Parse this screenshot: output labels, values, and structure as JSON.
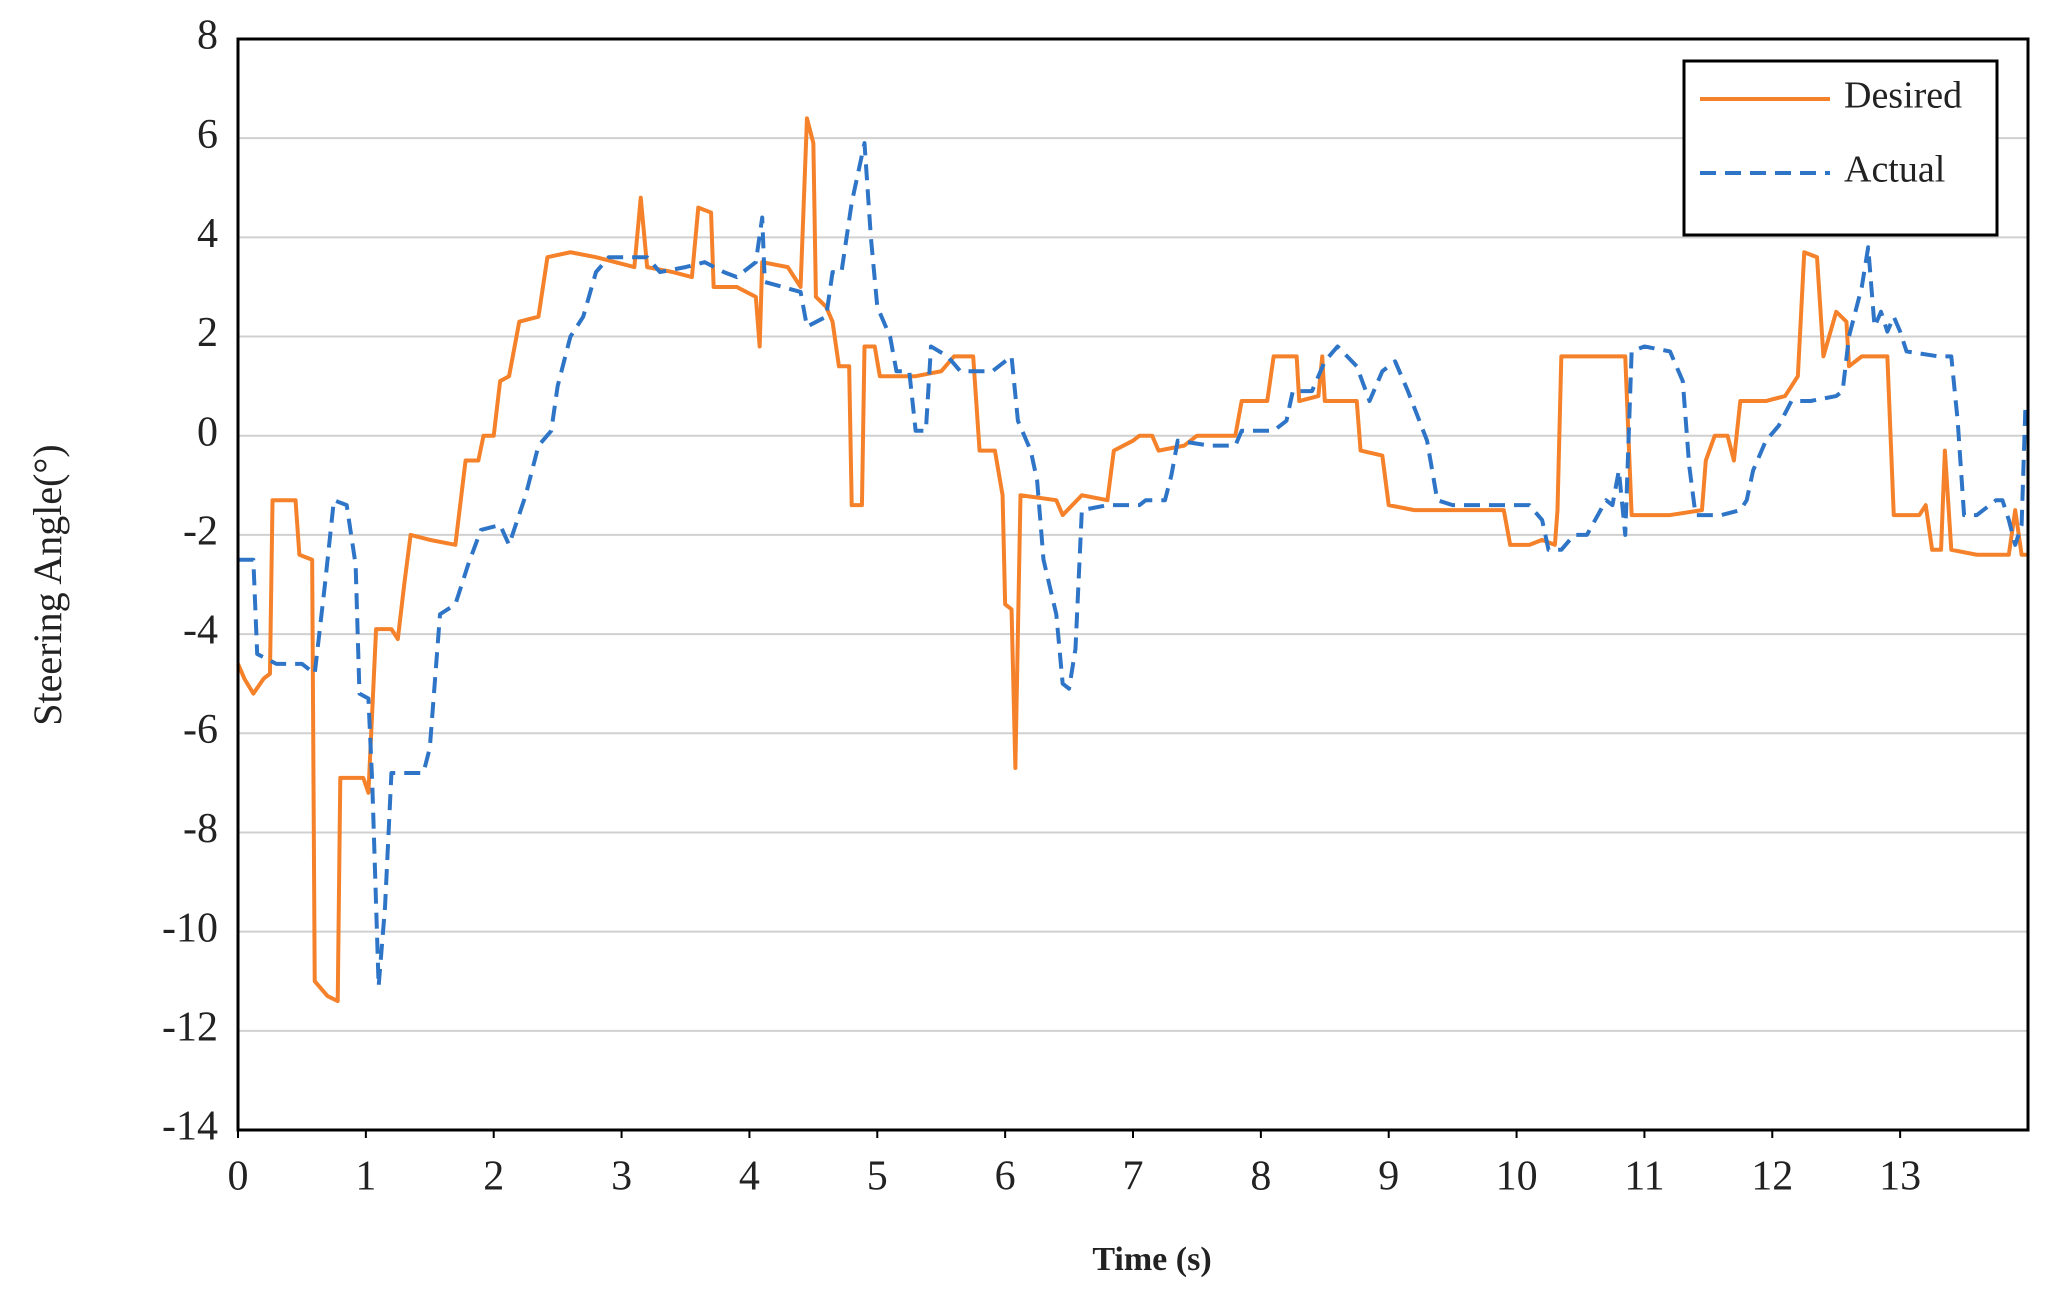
{
  "chart_data": {
    "type": "line",
    "xlabel": "Time (s)",
    "ylabel": "Steering Angle(°)",
    "xlim": [
      0,
      14
    ],
    "ylim": [
      -14,
      8
    ],
    "xticks": [
      0,
      1,
      2,
      3,
      4,
      5,
      6,
      7,
      8,
      9,
      10,
      11,
      12,
      13
    ],
    "yticks": [
      -14,
      -12,
      -10,
      -8,
      -6,
      -4,
      -2,
      0,
      2,
      4,
      6,
      8
    ],
    "grid": true,
    "legend": "upper right",
    "series": [
      {
        "name": "Desired",
        "color": "#f5822a",
        "dash": "solid",
        "x": [
          0,
          0.05,
          0.12,
          0.2,
          0.25,
          0.27,
          0.45,
          0.48,
          0.58,
          0.6,
          0.7,
          0.78,
          0.8,
          0.98,
          1.02,
          1.08,
          1.2,
          1.25,
          1.3,
          1.35,
          1.5,
          1.7,
          1.78,
          1.88,
          1.92,
          2.0,
          2.05,
          2.12,
          2.2,
          2.35,
          2.42,
          2.6,
          2.8,
          3.1,
          3.15,
          3.2,
          3.4,
          3.55,
          3.6,
          3.7,
          3.72,
          3.9,
          4.05,
          4.08,
          4.1,
          4.3,
          4.4,
          4.45,
          4.5,
          4.52,
          4.6,
          4.65,
          4.7,
          4.78,
          4.8,
          4.88,
          4.9,
          4.98,
          5.02,
          5.3,
          5.5,
          5.6,
          5.75,
          5.8,
          5.92,
          5.98,
          6.0,
          6.05,
          6.08,
          6.12,
          6.4,
          6.45,
          6.6,
          6.8,
          6.85,
          7.0,
          7.05,
          7.15,
          7.2,
          7.4,
          7.5,
          7.8,
          7.85,
          8.05,
          8.1,
          8.28,
          8.3,
          8.45,
          8.48,
          8.5,
          8.75,
          8.78,
          8.95,
          9.0,
          9.2,
          9.4,
          9.6,
          9.9,
          9.95,
          10.1,
          10.2,
          10.3,
          10.32,
          10.35,
          10.6,
          10.85,
          10.9,
          11.2,
          11.45,
          11.48,
          11.55,
          11.65,
          11.7,
          11.75,
          11.95,
          12.1,
          12.2,
          12.25,
          12.35,
          12.4,
          12.5,
          12.58,
          12.6,
          12.7,
          12.9,
          12.95,
          13.15,
          13.2,
          13.25,
          13.32,
          13.35,
          13.4,
          13.6,
          13.85,
          13.9,
          13.95,
          14.0
        ],
        "values": [
          -4.6,
          -4.9,
          -5.2,
          -4.9,
          -4.8,
          -1.3,
          -1.3,
          -2.4,
          -2.5,
          -11,
          -11.3,
          -11.4,
          -6.9,
          -6.9,
          -7.2,
          -3.9,
          -3.9,
          -4.1,
          -3.0,
          -2.0,
          -2.1,
          -2.2,
          -0.5,
          -0.5,
          0,
          0,
          1.1,
          1.2,
          2.3,
          2.4,
          3.6,
          3.7,
          3.6,
          3.4,
          4.8,
          3.4,
          3.3,
          3.2,
          4.6,
          4.5,
          3.0,
          3.0,
          2.8,
          1.8,
          3.5,
          3.4,
          3.0,
          6.4,
          5.9,
          2.8,
          2.6,
          2.3,
          1.4,
          1.4,
          -1.4,
          -1.4,
          1.8,
          1.8,
          1.2,
          1.2,
          1.3,
          1.6,
          1.6,
          -0.3,
          -0.3,
          -1.2,
          -3.4,
          -3.5,
          -6.7,
          -1.2,
          -1.3,
          -1.6,
          -1.2,
          -1.3,
          -0.3,
          -0.1,
          0,
          0,
          -0.3,
          -0.2,
          0,
          0,
          0.7,
          0.7,
          1.6,
          1.6,
          0.7,
          0.8,
          1.6,
          0.7,
          0.7,
          -0.3,
          -0.4,
          -1.4,
          -1.5,
          -1.5,
          -1.5,
          -1.5,
          -2.2,
          -2.2,
          -2.1,
          -2.2,
          -1.5,
          1.6,
          1.6,
          1.6,
          -1.6,
          -1.6,
          -1.5,
          -0.5,
          0,
          0,
          -0.5,
          0.7,
          0.7,
          0.8,
          1.2,
          3.7,
          3.6,
          1.6,
          2.5,
          2.3,
          1.4,
          1.6,
          1.6,
          -1.6,
          -1.6,
          -1.4,
          -2.3,
          -2.3,
          -0.3,
          -2.3,
          -2.4,
          -2.4,
          -1.5,
          -2.4,
          -2.4
        ]
      },
      {
        "name": "Actual",
        "color": "#2e75c8",
        "dash": "dashed",
        "x": [
          0,
          0.12,
          0.15,
          0.3,
          0.5,
          0.6,
          0.68,
          0.75,
          0.85,
          0.92,
          0.95,
          1.02,
          1.05,
          1.1,
          1.15,
          1.2,
          1.45,
          1.5,
          1.58,
          1.7,
          1.8,
          1.9,
          2.05,
          2.12,
          2.25,
          2.35,
          2.45,
          2.5,
          2.6,
          2.7,
          2.8,
          2.9,
          3.2,
          3.3,
          3.5,
          3.65,
          3.8,
          3.9,
          4.05,
          4.1,
          4.12,
          4.4,
          4.45,
          4.6,
          4.65,
          4.72,
          4.8,
          4.9,
          4.95,
          5.0,
          5.1,
          5.15,
          5.25,
          5.3,
          5.38,
          5.42,
          5.55,
          5.65,
          5.9,
          6.0,
          6.05,
          6.1,
          6.2,
          6.25,
          6.3,
          6.4,
          6.45,
          6.5,
          6.55,
          6.6,
          6.8,
          7.05,
          7.1,
          7.25,
          7.3,
          7.35,
          7.6,
          7.8,
          7.85,
          8.1,
          8.2,
          8.25,
          8.4,
          8.5,
          8.6,
          8.75,
          8.85,
          8.95,
          9.05,
          9.15,
          9.3,
          9.38,
          9.5,
          10.1,
          10.2,
          10.25,
          10.35,
          10.45,
          10.55,
          10.7,
          10.75,
          10.8,
          10.85,
          10.9,
          11.0,
          11.2,
          11.3,
          11.35,
          11.4,
          11.6,
          11.75,
          11.8,
          11.85,
          11.95,
          12.05,
          12.15,
          12.3,
          12.5,
          12.55,
          12.6,
          12.7,
          12.75,
          12.8,
          12.85,
          12.9,
          12.95,
          13.0,
          13.05,
          13.3,
          13.4,
          13.45,
          13.5,
          13.6,
          13.75,
          13.8,
          13.85,
          13.9,
          13.95,
          13.98,
          14.0
        ],
        "values": [
          -2.5,
          -2.5,
          -4.4,
          -4.6,
          -4.6,
          -4.8,
          -3.0,
          -1.3,
          -1.4,
          -2.6,
          -5.2,
          -5.3,
          -7.0,
          -11.1,
          -9.5,
          -6.8,
          -6.8,
          -6.3,
          -3.6,
          -3.4,
          -2.6,
          -1.9,
          -1.8,
          -2.2,
          -1.2,
          -0.2,
          0.1,
          1.0,
          2.0,
          2.4,
          3.3,
          3.6,
          3.6,
          3.3,
          3.4,
          3.5,
          3.3,
          3.2,
          3.5,
          4.4,
          3.1,
          2.9,
          2.2,
          2.4,
          3.3,
          3.3,
          4.7,
          5.9,
          4.0,
          2.6,
          2.0,
          1.3,
          1.3,
          0.1,
          0.1,
          1.8,
          1.6,
          1.3,
          1.3,
          1.5,
          1.6,
          0.3,
          -0.3,
          -0.9,
          -2.5,
          -3.6,
          -5.0,
          -5.1,
          -4.3,
          -1.5,
          -1.4,
          -1.4,
          -1.3,
          -1.3,
          -0.8,
          -0.1,
          -0.2,
          -0.2,
          0.1,
          0.1,
          0.3,
          0.9,
          0.9,
          1.5,
          1.8,
          1.4,
          0.7,
          1.3,
          1.5,
          0.9,
          -0.1,
          -1.3,
          -1.4,
          -1.4,
          -1.7,
          -2.3,
          -2.3,
          -2.0,
          -2.0,
          -1.3,
          -1.4,
          -0.7,
          -2.0,
          1.7,
          1.8,
          1.7,
          1.1,
          -0.6,
          -1.6,
          -1.6,
          -1.5,
          -1.3,
          -0.7,
          -0.1,
          0.2,
          0.7,
          0.7,
          0.8,
          0.9,
          2.0,
          3.0,
          3.8,
          2.2,
          2.5,
          2.1,
          2.4,
          2.1,
          1.7,
          1.6,
          1.6,
          0.3,
          -1.6,
          -1.6,
          -1.3,
          -1.3,
          -1.7,
          -2.2,
          -1.8,
          0.6,
          0.5
        ]
      }
    ]
  }
}
